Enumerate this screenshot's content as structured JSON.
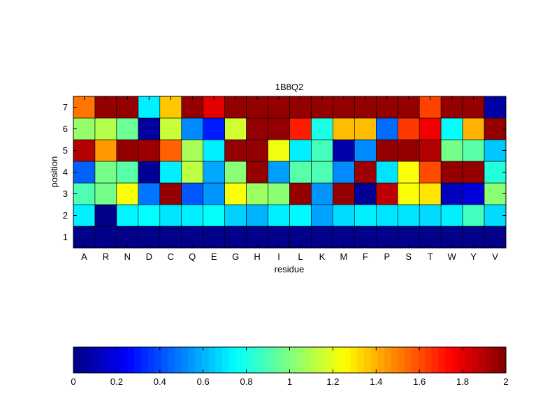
{
  "chart_data": {
    "type": "heatmap",
    "title": "1B8Q2",
    "xlabel": "residue",
    "ylabel": "position",
    "x_categories": [
      "A",
      "R",
      "N",
      "D",
      "C",
      "Q",
      "E",
      "G",
      "H",
      "I",
      "L",
      "K",
      "M",
      "F",
      "P",
      "S",
      "T",
      "W",
      "Y",
      "V"
    ],
    "y_categories": [
      "1",
      "2",
      "3",
      "4",
      "5",
      "6",
      "7"
    ],
    "colormap": "jet",
    "clim": [
      0,
      2
    ],
    "values": [
      [
        0.02,
        0.02,
        0.02,
        0.02,
        0.02,
        0.02,
        0.02,
        0.02,
        0.02,
        0.02,
        0.02,
        0.02,
        0.02,
        0.02,
        0.02,
        0.02,
        0.02,
        0.02,
        0.02,
        0.02
      ],
      [
        0.72,
        0.02,
        0.73,
        0.75,
        0.7,
        0.72,
        0.76,
        0.66,
        0.6,
        0.72,
        0.74,
        0.57,
        0.68,
        0.72,
        0.7,
        0.7,
        0.68,
        0.72,
        0.88,
        0.68
      ],
      [
        0.9,
        0.98,
        1.24,
        0.48,
        1.96,
        0.42,
        0.54,
        1.24,
        1.06,
        1.02,
        1.96,
        0.54,
        1.96,
        0.04,
        1.88,
        1.24,
        1.3,
        0.12,
        0.18,
        1.02
      ],
      [
        0.44,
        0.98,
        0.92,
        0.04,
        0.72,
        1.12,
        0.58,
        1.02,
        1.96,
        0.56,
        0.92,
        0.9,
        0.52,
        1.94,
        0.7,
        1.24,
        1.6,
        1.96,
        1.96,
        0.82
      ],
      [
        1.9,
        1.45,
        1.96,
        1.94,
        1.56,
        1.08,
        0.72,
        1.96,
        1.96,
        1.22,
        0.72,
        0.88,
        0.08,
        0.52,
        1.96,
        1.96,
        1.9,
        0.98,
        0.92,
        0.64
      ],
      [
        1.04,
        1.1,
        0.96,
        0.06,
        1.14,
        0.52,
        0.3,
        1.16,
        1.96,
        1.96,
        1.7,
        0.8,
        1.38,
        1.38,
        0.46,
        1.64,
        1.78,
        0.75,
        1.4,
        1.96
      ],
      [
        1.52,
        1.96,
        1.96,
        0.72,
        1.36,
        1.96,
        1.8,
        1.96,
        1.96,
        1.96,
        1.96,
        1.96,
        1.96,
        1.96,
        1.96,
        1.96,
        1.62,
        1.96,
        1.96,
        0.08
      ]
    ],
    "colorbar": {
      "orientation": "horizontal",
      "range": [
        0,
        2
      ],
      "ticks": [
        0,
        0.2,
        0.4,
        0.6,
        0.8,
        1,
        1.2,
        1.4,
        1.6,
        1.8,
        2
      ],
      "tick_labels": [
        "0",
        "0.2",
        "0.4",
        "0.6",
        "0.8",
        "1",
        "1.2",
        "1.4",
        "1.6",
        "1.8",
        "2"
      ]
    }
  }
}
